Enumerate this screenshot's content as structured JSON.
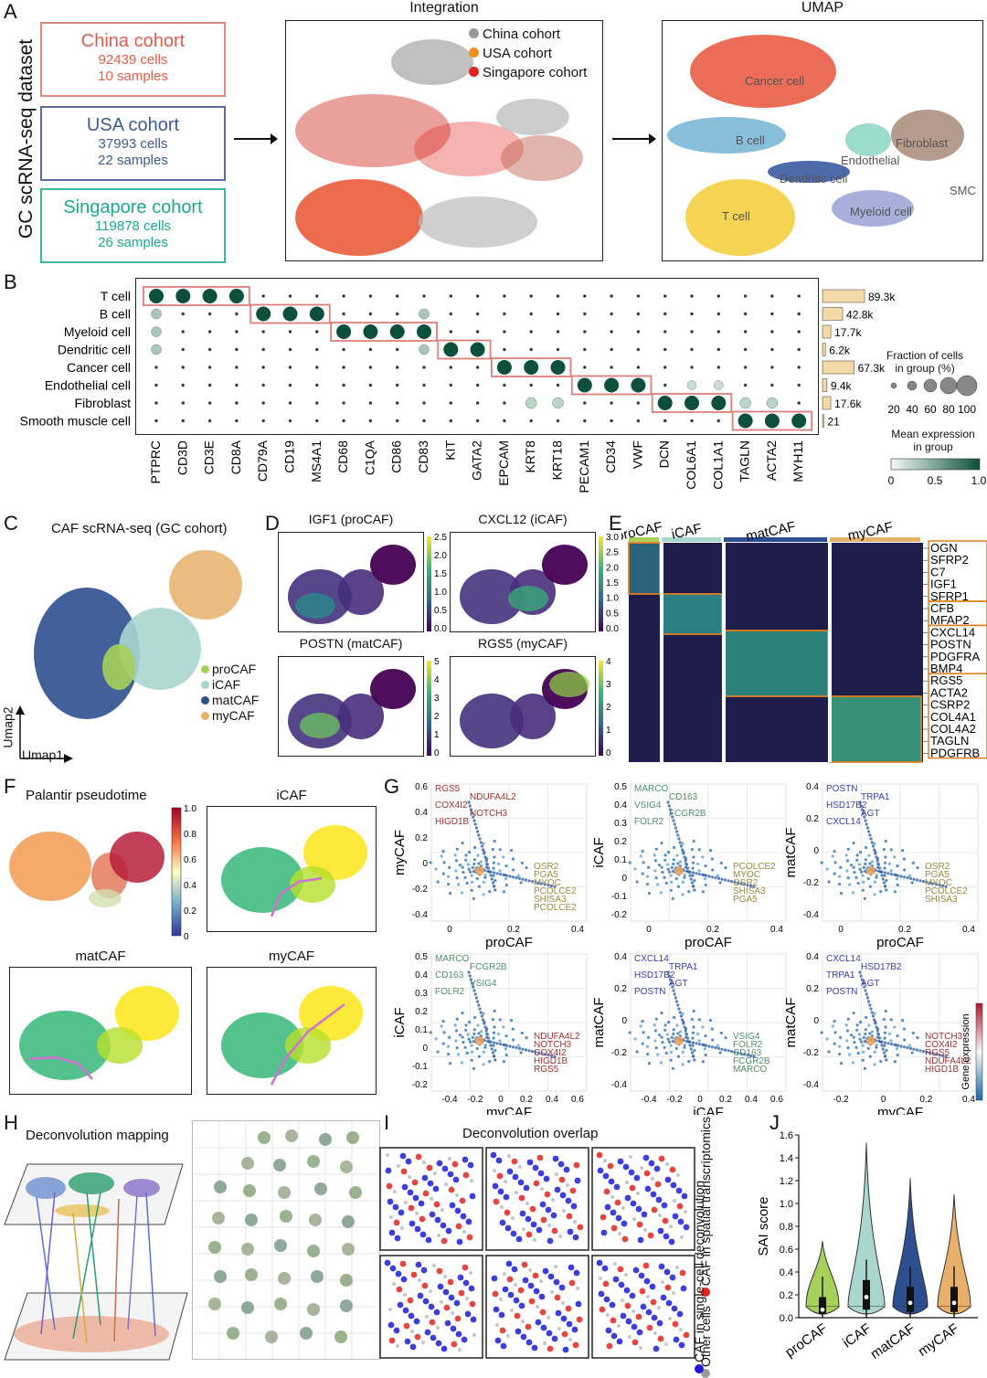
{
  "panels": {
    "A": "A",
    "B": "B",
    "C": "C",
    "D": "D",
    "E": "E",
    "F": "F",
    "G": "G",
    "H": "H",
    "I": "I",
    "J": "J"
  },
  "panelA": {
    "side_label": "GC scRNA-seq dataset",
    "cohorts": [
      {
        "name": "China cohort",
        "cells": "92439 cells",
        "samples": "10 samples",
        "color": "#e05c4a"
      },
      {
        "name": "USA cohort",
        "cells": "37993 cells",
        "samples": "22 samples",
        "color": "#3f5a8f"
      },
      {
        "name": "Singapore cohort",
        "cells": "119878 cells",
        "samples": "26 samples",
        "color": "#1aa98f"
      }
    ],
    "integration_title": "Integration",
    "integration_legend": [
      {
        "label": "China cohort",
        "color": "#999999"
      },
      {
        "label": "USA cohort",
        "color": "#f28e1c"
      },
      {
        "label": "Singapore cohort",
        "color": "#e0261f"
      }
    ],
    "umap_title": "UMAP",
    "umap_labels": [
      "Cancer cell",
      "B cell",
      "Endothelial",
      "Fibroblast",
      "Dendritic cell",
      "SMC",
      "T cell",
      "Myeloid cell"
    ]
  },
  "panelB": {
    "rows": [
      "T cell",
      "B cell",
      "Myeloid cell",
      "Dendritic cell",
      "Cancer cell",
      "Endothelial cell",
      "Fibroblast",
      "Smooth muscle cell"
    ],
    "genes": [
      "PTPRC",
      "CD3D",
      "CD3E",
      "CD8A",
      "CD79A",
      "CD19",
      "MS4A1",
      "CD68",
      "C1QA",
      "CD86",
      "CD83",
      "KIT",
      "GATA2",
      "EPCAM",
      "KRT8",
      "KRT18",
      "PECAM1",
      "CD34",
      "VWF",
      "DCN",
      "COL6A1",
      "COL1A1",
      "TAGLN",
      "ACTA2",
      "MYH11"
    ],
    "counts": [
      "89.3k",
      "42.8k",
      "17.7k",
      "6.2k",
      "67.3k",
      "9.4k",
      "17.6k",
      "21"
    ],
    "count_values": [
      89.3,
      42.8,
      17.7,
      6.2,
      67.3,
      9.4,
      17.6,
      0.021
    ],
    "size_legend_title": "Fraction of cells\nin group (%)",
    "size_legend_title_1": "Fraction of cells",
    "size_legend_title_2": "in group (%)",
    "size_legend_values": [
      "20",
      "40",
      "60",
      "80",
      "100"
    ],
    "color_legend_title_1": "Mean expression",
    "color_legend_title_2": "in group",
    "color_legend_ticks": [
      "0",
      "0.5",
      "1.0"
    ]
  },
  "panelC": {
    "title": "CAF scRNA-seq (GC cohort)",
    "legend": [
      {
        "label": "proCAF",
        "color": "#a6d05a"
      },
      {
        "label": "iCAF",
        "color": "#a9d6cf"
      },
      {
        "label": "matCAF",
        "color": "#2e4f8f"
      },
      {
        "label": "myCAF",
        "color": "#e8b06a"
      }
    ],
    "xlabel": "Umap1",
    "ylabel": "Umap2"
  },
  "panelD": {
    "maps": [
      {
        "title": "IGF1 (proCAF)",
        "ticks": [
          "2.5",
          "2.0",
          "1.5",
          "1.0",
          "0.5",
          "0.0"
        ]
      },
      {
        "title": "CXCL12 (iCAF)",
        "ticks": [
          "3.0",
          "2.5",
          "2.0",
          "1.5",
          "1.0",
          "0.5",
          "0.0"
        ]
      },
      {
        "title": "POSTN (matCAF)",
        "ticks": [
          "5",
          "4",
          "3",
          "2",
          "1",
          "0"
        ]
      },
      {
        "title": "RGS5 (myCAF)",
        "ticks": [
          "4",
          "3",
          "2",
          "1",
          "0"
        ]
      }
    ]
  },
  "panelE": {
    "groups": [
      "proCAF",
      "iCAF",
      "matCAF",
      "myCAF"
    ],
    "group_colors": [
      "#a6d05a",
      "#a9d6cf",
      "#2e4f8f",
      "#e8b06a"
    ],
    "genes": [
      "OGN",
      "SFRP2",
      "C7",
      "IGF1",
      "SFRP1",
      "CFB",
      "MFAP2",
      "CXCL14",
      "POSTN",
      "PDGFRA",
      "BMP4",
      "RGS5",
      "ACTA2",
      "CSRP2",
      "COL4A1",
      "COL4A2",
      "TAGLN",
      "PDGFRB"
    ]
  },
  "panelF": {
    "titles": [
      "Palantir pseudotime",
      "iCAF",
      "matCAF",
      "myCAF"
    ],
    "colorbar_ticks": [
      "1.0",
      "0.8",
      "0.6",
      "0.4",
      "0.2",
      "0"
    ]
  },
  "panelG": {
    "plots": [
      {
        "xlabel": "proCAF",
        "ylabel": "myCAF",
        "yticks": [
          "0.6",
          "0.4",
          "0.2",
          "0",
          "-0.2",
          "-0.4"
        ],
        "xticks": [
          "0",
          "0.2",
          "0.4"
        ],
        "top_genes": [
          "RGS5",
          "NDUFA4L2",
          "COX4I2",
          "NOTCH3",
          "HIGD1B"
        ],
        "right_genes": [
          "OSR2",
          "PGA5",
          "MYOC",
          "PCOLCE2",
          "SHISA3",
          "PCOLCE2"
        ]
      },
      {
        "xlabel": "proCAF",
        "ylabel": "iCAF",
        "yticks": [
          "0.5",
          "0.4",
          "0.3",
          "0.2",
          "0.1",
          "0",
          "-0.1",
          "-0.2"
        ],
        "xticks": [
          "0",
          "0.2",
          "0.4"
        ],
        "top_genes": [
          "MARCO",
          "CD163",
          "VSIG4",
          "FCGR2B",
          "FOLR2"
        ],
        "right_genes": [
          "PCOLCE2",
          "MYOC",
          "OSR2",
          "SHISA3",
          "PGA5"
        ]
      },
      {
        "xlabel": "proCAF",
        "ylabel": "matCAF",
        "yticks": [
          "0.4",
          "0.2",
          "0",
          "-0.2",
          "-0.4"
        ],
        "xticks": [
          "0",
          "0.2",
          "0.4"
        ],
        "top_genes": [
          "POSTN",
          "TRPA1",
          "HSD17B2",
          "AGT",
          "CXCL14"
        ],
        "right_genes": [
          "OSR2",
          "PGA5",
          "MYOC",
          "PCOLCE2",
          "SHISA3"
        ]
      },
      {
        "xlabel": "myCAF",
        "ylabel": "iCAF",
        "yticks": [
          "0.5",
          "0.4",
          "0.3",
          "0.2",
          "0.1",
          "0",
          "-0.1",
          "-0.2"
        ],
        "xticks": [
          "-0.4",
          "-0.2",
          "0",
          "0.2",
          "0.4",
          "0.6"
        ],
        "top_genes": [
          "MARCO",
          "FCGR2B",
          "CD163",
          "VSIG4",
          "FOLR2"
        ],
        "right_genes": [
          "NDUFA4L2",
          "NOTCH3",
          "COX4I2",
          "HIGD1B",
          "RGS5"
        ]
      },
      {
        "xlabel": "iCAF",
        "ylabel": "matCAF",
        "yticks": [
          "0.4",
          "0.2",
          "0",
          "-0.2",
          "-0.4"
        ],
        "xticks": [
          "-0.4",
          "-0.2",
          "0",
          "0.2",
          "0.4",
          "0.6"
        ],
        "top_genes": [
          "CXCL14",
          "TRPA1",
          "HSD17B2",
          "AGT",
          "POSTN"
        ],
        "right_genes": [
          "VSIG4",
          "FOLR2",
          "CD163",
          "FCGR2B",
          "MARCO"
        ]
      },
      {
        "xlabel": "myCAF",
        "ylabel": "matCAF",
        "yticks": [
          "0.4",
          "0.2",
          "0",
          "-0.2",
          "-0.4"
        ],
        "xticks": [
          "-0.2",
          "0",
          "0.2",
          "0.4"
        ],
        "top_genes": [
          "CXCL14",
          "HSD17B2",
          "TRPA1",
          "AGT",
          "POSTN"
        ],
        "right_genes": [
          "NOTCH3",
          "COX4I2",
          "RGS5",
          "NDUFA4L2",
          "HIGD1B"
        ]
      }
    ],
    "colorbar_label": "Gene expression"
  },
  "panelH": {
    "title": "Deconvolution mapping"
  },
  "panelI": {
    "title": "Deconvolution overlap",
    "legend": [
      {
        "label": "CAF in single-cell deconvolution",
        "color": "#1c1cd6"
      },
      {
        "label": "CAF in spatial transcriptomics",
        "color": "#e0261f"
      },
      {
        "label": "Other cells",
        "color": "#999999"
      }
    ]
  },
  "chart_data": [
    {
      "type": "bar",
      "title": "",
      "categories": [
        "T cell",
        "B cell",
        "Myeloid cell",
        "Dendritic cell",
        "Cancer cell",
        "Endothelial cell",
        "Fibroblast",
        "Smooth muscle cell"
      ],
      "values": [
        89300,
        42800,
        17700,
        6200,
        67300,
        9400,
        17600,
        21
      ],
      "xlabel": "",
      "ylabel": ""
    },
    {
      "type": "violin",
      "title": "",
      "categories": [
        "proCAF",
        "iCAF",
        "matCAF",
        "myCAF"
      ],
      "colors": [
        "#a6d05a",
        "#a9d6cf",
        "#2e4f8f",
        "#e8b06a"
      ],
      "medians": [
        0.07,
        0.18,
        0.13,
        0.13
      ],
      "q1": [
        0.03,
        0.07,
        0.05,
        0.05
      ],
      "q3": [
        0.18,
        0.33,
        0.27,
        0.27
      ],
      "max": [
        0.67,
        1.53,
        1.22,
        1.08
      ],
      "ylabel": "SAI score",
      "ylim": [
        0,
        1.6
      ],
      "yticks": [
        "0.0",
        "0.2",
        "0.4",
        "0.6",
        "0.8",
        "1.0",
        "1.2",
        "1.4",
        "1.6"
      ]
    }
  ]
}
